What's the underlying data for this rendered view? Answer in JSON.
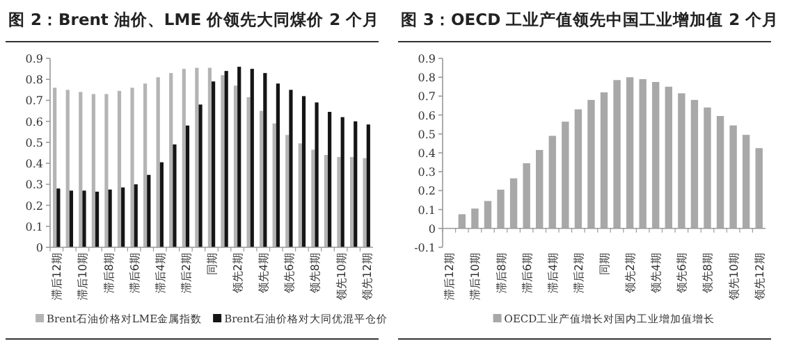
{
  "chart_data": [
    {
      "type": "bar",
      "title": "图 2：Brent 油价、LME 价领先大同煤价 2 个月",
      "categories": [
        "滞后12期",
        null,
        "滞后10期",
        null,
        "滞后8期",
        null,
        "滞后6期",
        null,
        "滞后4期",
        null,
        "滞后2期",
        null,
        "同期",
        null,
        "领先2期",
        null,
        "领先4期",
        null,
        "领先6期",
        null,
        "领先8期",
        null,
        "领先10期",
        null,
        "领先12期"
      ],
      "series": [
        {
          "name": "Brent石油价格对LME金属指数",
          "color": "#b4b4b4",
          "values": [
            0.76,
            0.75,
            0.74,
            0.73,
            0.73,
            0.745,
            0.76,
            0.78,
            0.81,
            0.83,
            0.85,
            0.855,
            0.855,
            0.82,
            0.77,
            0.715,
            0.65,
            0.59,
            0.535,
            0.495,
            0.465,
            0.44,
            0.43,
            0.43,
            0.425
          ]
        },
        {
          "name": "Brent石油价格对大同优混平仓价",
          "color": "#151515",
          "values": [
            0.28,
            0.27,
            0.27,
            0.265,
            0.275,
            0.285,
            0.3,
            0.345,
            0.405,
            0.49,
            0.58,
            0.68,
            0.79,
            0.84,
            0.86,
            0.85,
            0.83,
            0.78,
            0.75,
            0.72,
            0.69,
            0.645,
            0.62,
            0.6,
            0.585
          ]
        }
      ],
      "ylim": [
        0,
        0.9
      ],
      "yticks": [
        0,
        0.1,
        0.2,
        0.3,
        0.4,
        0.5,
        0.6,
        0.7,
        0.8,
        0.9
      ],
      "legend": "bottom"
    },
    {
      "type": "bar",
      "title": "图 3：OECD 工业产值领先中国工业增加值 2 个月",
      "categories": [
        "滞后12期",
        null,
        "滞后10期",
        null,
        "滞后8期",
        null,
        "滞后6期",
        null,
        "滞后4期",
        null,
        "滞后2期",
        null,
        "同期",
        null,
        "领先2期",
        null,
        "领先4期",
        null,
        "领先6期",
        null,
        "领先8期",
        null,
        "领先10期",
        null,
        "领先12期"
      ],
      "series": [
        {
          "name": "OECD工业产值增长对国内工业增加值增长",
          "color": "#a8a8a8",
          "values": [
            0,
            0.075,
            0.105,
            0.145,
            0.205,
            0.265,
            0.345,
            0.415,
            0.49,
            0.565,
            0.63,
            0.68,
            0.72,
            0.785,
            0.8,
            0.79,
            0.775,
            0.75,
            0.715,
            0.68,
            0.64,
            0.595,
            0.545,
            0.495,
            0.425
          ]
        }
      ],
      "ylim": [
        -0.1,
        0.9
      ],
      "yticks": [
        -0.1,
        0,
        0.1,
        0.2,
        0.3,
        0.4,
        0.5,
        0.6,
        0.7,
        0.8,
        0.9
      ],
      "legend": "bottom"
    }
  ]
}
